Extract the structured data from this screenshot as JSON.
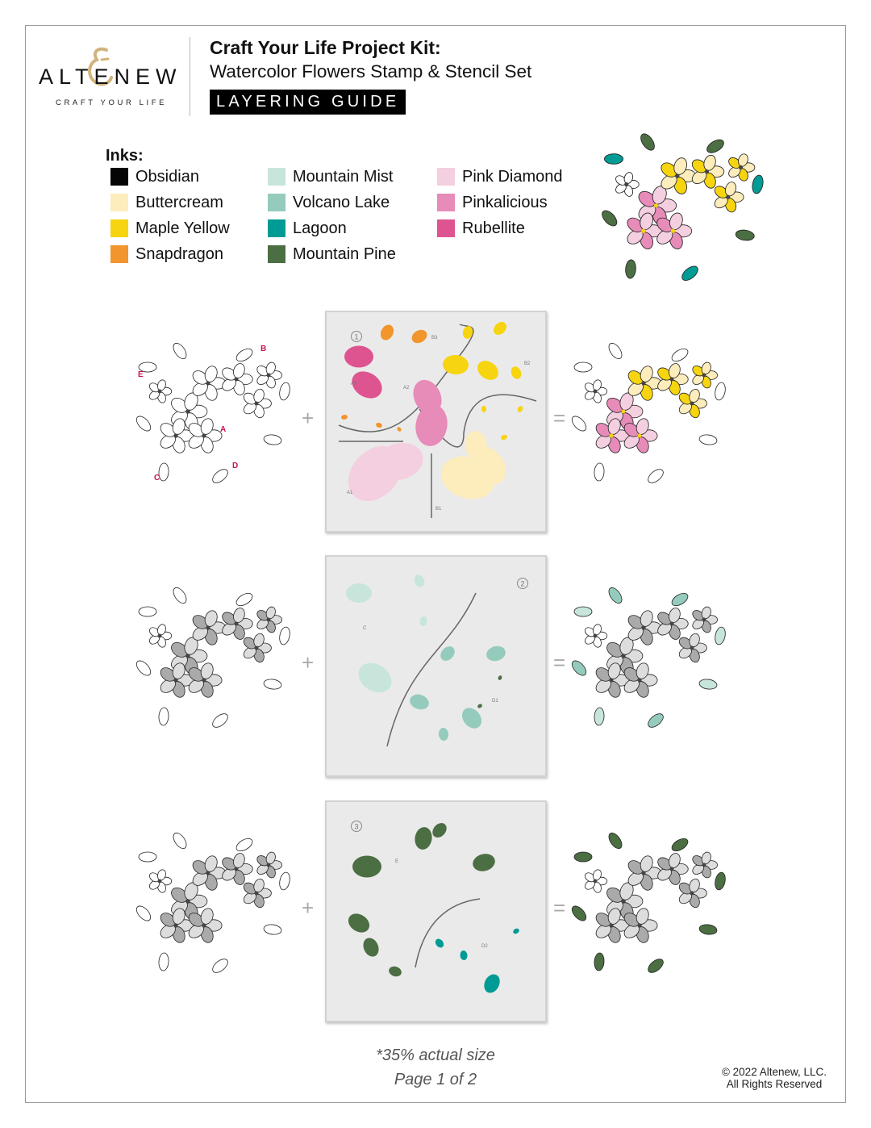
{
  "logo": {
    "brand": "ALTENEW",
    "tagline": "CRAFT YOUR LIFE"
  },
  "header": {
    "title": "Craft Your Life Project Kit:",
    "subtitle": "Watercolor Flowers Stamp & Stencil Set",
    "badge": "LAYERING GUIDE"
  },
  "inks": {
    "label": "Inks:",
    "items": [
      {
        "name": "Obsidian",
        "color": "#050505"
      },
      {
        "name": "Buttercream",
        "color": "#fdecbc"
      },
      {
        "name": "Maple Yellow",
        "color": "#f6d40f"
      },
      {
        "name": "Snapdragon",
        "color": "#f1952c"
      },
      {
        "name": "Mountain Mist",
        "color": "#c8e5dc"
      },
      {
        "name": "Volcano Lake",
        "color": "#94cbbd"
      },
      {
        "name": "Lagoon",
        "color": "#009b94"
      },
      {
        "name": "Mountain Pine",
        "color": "#4b6e43"
      },
      {
        "name": "Pink Diamond",
        "color": "#f4cfe0"
      },
      {
        "name": "Pinkalicious",
        "color": "#e78bb9"
      },
      {
        "name": "Rubellite",
        "color": "#de5490"
      }
    ]
  },
  "stamp_labels": [
    "A",
    "B",
    "C",
    "D",
    "E"
  ],
  "steps": [
    {
      "number": "1",
      "stencil_labels": [
        "A1",
        "A2",
        "A3",
        "B1",
        "B2",
        "B3"
      ]
    },
    {
      "number": "2",
      "stencil_labels": [
        "C",
        "D1"
      ]
    },
    {
      "number": "3",
      "stencil_labels": [
        "E",
        "D2"
      ]
    }
  ],
  "operators": {
    "plus": "+",
    "equals": "="
  },
  "footer": {
    "note": "*35% actual size",
    "page": "Page 1 of 2",
    "copyright": "© 2022 Altenew, LLC.",
    "rights": "All Rights Reserved"
  }
}
